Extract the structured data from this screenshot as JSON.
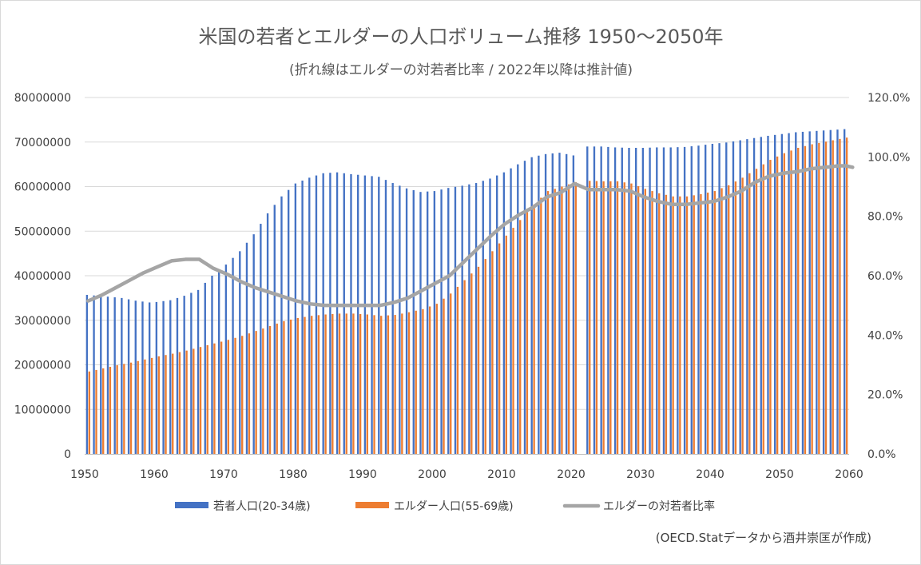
{
  "chart_data": {
    "type": "bar",
    "title": "米国の若者とエルダーの人口ボリューム推移 1950〜2050年",
    "subtitle": "(折れ線はエルダーの対若者比率 / 2022年以降は推計値)",
    "credit": "(OECD.Statデータから酒井崇匡が作成)",
    "x_range": [
      1950,
      2060
    ],
    "x_tick_labels": [
      "1950",
      "1960",
      "1970",
      "1980",
      "1990",
      "2000",
      "2010",
      "2020",
      "2030",
      "2040",
      "2050",
      "2060"
    ],
    "y_left_range": [
      0,
      80000000
    ],
    "y_left_tick_labels": [
      "0",
      "10000000",
      "20000000",
      "30000000",
      "40000000",
      "50000000",
      "60000000",
      "70000000",
      "80000000"
    ],
    "y_right_range": [
      0,
      1.2
    ],
    "y_right_tick_labels": [
      "0.0%",
      "20.0%",
      "40.0%",
      "60.0%",
      "80.0%",
      "100.0%",
      "120.0%"
    ],
    "gridlines": true,
    "legend_position": "bottom",
    "colors": {
      "youth": "#4472c4",
      "elder": "#ed7d31",
      "ratio": "#a5a5a5",
      "grid": "#d9d9d9",
      "axis": "#bfbfbf"
    },
    "legend": [
      {
        "name": "若者人口(20-34歳)",
        "kind": "bar",
        "color": "#4472c4"
      },
      {
        "name": "エルダー人口(55-69歳)",
        "kind": "bar",
        "color": "#ed7d31"
      },
      {
        "name": "エルダーの対若者比率",
        "kind": "line",
        "color": "#a5a5a5"
      }
    ],
    "missing_years": [
      2021
    ],
    "anchors": {
      "youth": [
        [
          1950,
          35700000
        ],
        [
          1953,
          35300000
        ],
        [
          1955,
          35000000
        ],
        [
          1957,
          34400000
        ],
        [
          1959,
          34000000
        ],
        [
          1960,
          34100000
        ],
        [
          1962,
          34500000
        ],
        [
          1964,
          35500000
        ],
        [
          1966,
          36800000
        ],
        [
          1968,
          40000000
        ],
        [
          1970,
          42500000
        ],
        [
          1972,
          45500000
        ],
        [
          1974,
          49300000
        ],
        [
          1976,
          54000000
        ],
        [
          1978,
          57800000
        ],
        [
          1980,
          60700000
        ],
        [
          1982,
          62000000
        ],
        [
          1984,
          63000000
        ],
        [
          1986,
          63200000
        ],
        [
          1988,
          62800000
        ],
        [
          1990,
          62500000
        ],
        [
          1992,
          62200000
        ],
        [
          1994,
          60800000
        ],
        [
          1996,
          59600000
        ],
        [
          1998,
          58800000
        ],
        [
          2000,
          59000000
        ],
        [
          2002,
          59700000
        ],
        [
          2004,
          60200000
        ],
        [
          2006,
          60800000
        ],
        [
          2008,
          61800000
        ],
        [
          2010,
          63200000
        ],
        [
          2012,
          65000000
        ],
        [
          2014,
          66600000
        ],
        [
          2016,
          67300000
        ],
        [
          2018,
          67600000
        ],
        [
          2020,
          67000000
        ],
        [
          2022,
          69000000
        ],
        [
          2024,
          69000000
        ],
        [
          2026,
          68800000
        ],
        [
          2028,
          68700000
        ],
        [
          2030,
          68700000
        ],
        [
          2032,
          68800000
        ],
        [
          2034,
          68800000
        ],
        [
          2036,
          68900000
        ],
        [
          2038,
          69200000
        ],
        [
          2040,
          69600000
        ],
        [
          2042,
          69900000
        ],
        [
          2044,
          70400000
        ],
        [
          2046,
          70900000
        ],
        [
          2048,
          71400000
        ],
        [
          2050,
          71800000
        ],
        [
          2052,
          72200000
        ],
        [
          2054,
          72400000
        ],
        [
          2056,
          72600000
        ],
        [
          2058,
          72800000
        ],
        [
          2059,
          72900000
        ]
      ],
      "elder": [
        [
          1950,
          18500000
        ],
        [
          1952,
          19200000
        ],
        [
          1954,
          19900000
        ],
        [
          1956,
          20500000
        ],
        [
          1958,
          21200000
        ],
        [
          1960,
          21900000
        ],
        [
          1962,
          22500000
        ],
        [
          1964,
          23200000
        ],
        [
          1966,
          24000000
        ],
        [
          1968,
          24800000
        ],
        [
          1970,
          25600000
        ],
        [
          1972,
          26500000
        ],
        [
          1974,
          27600000
        ],
        [
          1976,
          28700000
        ],
        [
          1978,
          29800000
        ],
        [
          1980,
          30500000
        ],
        [
          1982,
          31000000
        ],
        [
          1984,
          31300000
        ],
        [
          1986,
          31500000
        ],
        [
          1988,
          31500000
        ],
        [
          1990,
          31300000
        ],
        [
          1992,
          31000000
        ],
        [
          1994,
          31200000
        ],
        [
          1996,
          31800000
        ],
        [
          1998,
          32500000
        ],
        [
          2000,
          33700000
        ],
        [
          2002,
          36000000
        ],
        [
          2004,
          39000000
        ],
        [
          2006,
          42000000
        ],
        [
          2008,
          45500000
        ],
        [
          2010,
          49000000
        ],
        [
          2012,
          52500000
        ],
        [
          2014,
          56000000
        ],
        [
          2016,
          59000000
        ],
        [
          2018,
          60000000
        ],
        [
          2020,
          61000000
        ],
        [
          2022,
          61300000
        ],
        [
          2024,
          61200000
        ],
        [
          2026,
          61200000
        ],
        [
          2028,
          60700000
        ],
        [
          2030,
          59500000
        ],
        [
          2032,
          58500000
        ],
        [
          2034,
          57800000
        ],
        [
          2036,
          57800000
        ],
        [
          2038,
          58300000
        ],
        [
          2040,
          59000000
        ],
        [
          2042,
          60300000
        ],
        [
          2044,
          62000000
        ],
        [
          2046,
          64000000
        ],
        [
          2048,
          66000000
        ],
        [
          2050,
          67500000
        ],
        [
          2052,
          68700000
        ],
        [
          2054,
          69500000
        ],
        [
          2056,
          70100000
        ],
        [
          2058,
          70700000
        ],
        [
          2059,
          71000000
        ]
      ],
      "ratio": [
        [
          1950,
          0.515
        ],
        [
          1952,
          0.535
        ],
        [
          1954,
          0.56
        ],
        [
          1956,
          0.585
        ],
        [
          1958,
          0.61
        ],
        [
          1960,
          0.63
        ],
        [
          1962,
          0.65
        ],
        [
          1964,
          0.655
        ],
        [
          1966,
          0.655
        ],
        [
          1967,
          0.64
        ],
        [
          1968,
          0.625
        ],
        [
          1970,
          0.605
        ],
        [
          1972,
          0.58
        ],
        [
          1974,
          0.56
        ],
        [
          1976,
          0.545
        ],
        [
          1978,
          0.53
        ],
        [
          1980,
          0.515
        ],
        [
          1982,
          0.505
        ],
        [
          1984,
          0.5
        ],
        [
          1986,
          0.5
        ],
        [
          1988,
          0.5
        ],
        [
          1990,
          0.5
        ],
        [
          1992,
          0.5
        ],
        [
          1994,
          0.51
        ],
        [
          1996,
          0.525
        ],
        [
          1998,
          0.55
        ],
        [
          2000,
          0.575
        ],
        [
          2002,
          0.6
        ],
        [
          2004,
          0.645
        ],
        [
          2006,
          0.69
        ],
        [
          2008,
          0.735
        ],
        [
          2010,
          0.775
        ],
        [
          2012,
          0.805
        ],
        [
          2014,
          0.83
        ],
        [
          2016,
          0.865
        ],
        [
          2018,
          0.88
        ],
        [
          2020,
          0.91
        ],
        [
          2022,
          0.89
        ],
        [
          2024,
          0.89
        ],
        [
          2026,
          0.89
        ],
        [
          2028,
          0.885
        ],
        [
          2030,
          0.865
        ],
        [
          2032,
          0.85
        ],
        [
          2034,
          0.84
        ],
        [
          2036,
          0.84
        ],
        [
          2038,
          0.845
        ],
        [
          2040,
          0.85
        ],
        [
          2042,
          0.865
        ],
        [
          2044,
          0.885
        ],
        [
          2046,
          0.915
        ],
        [
          2048,
          0.935
        ],
        [
          2050,
          0.945
        ],
        [
          2052,
          0.95
        ],
        [
          2054,
          0.96
        ],
        [
          2056,
          0.965
        ],
        [
          2058,
          0.97
        ],
        [
          2059,
          0.97
        ],
        [
          2060,
          0.965
        ]
      ]
    }
  }
}
